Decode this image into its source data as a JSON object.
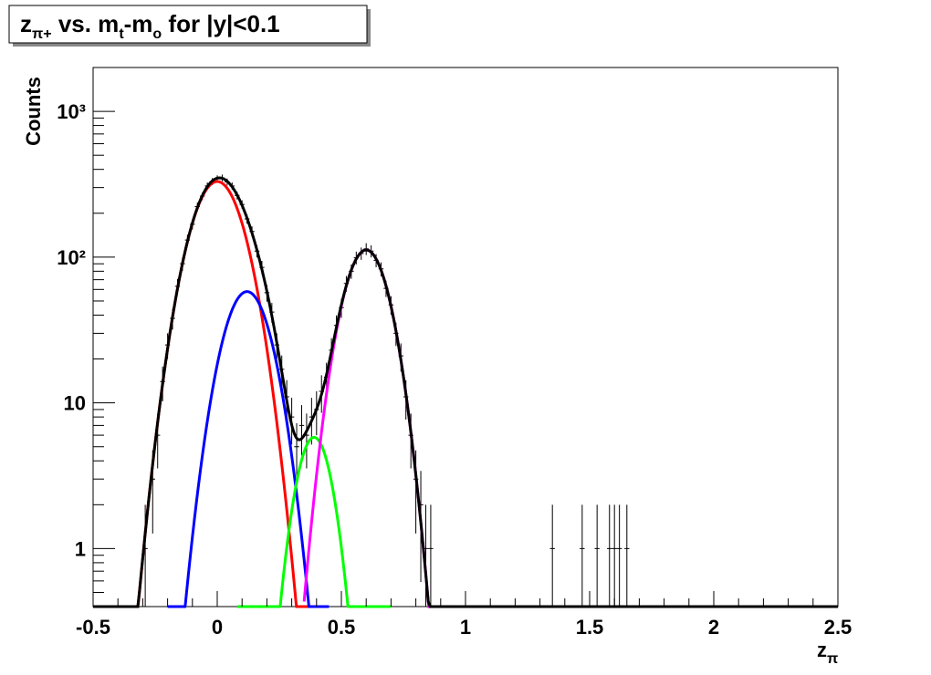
{
  "chart_data": {
    "type": "errorbar",
    "title": [
      {
        "text": "z"
      },
      {
        "text": "π+",
        "sub": true
      },
      {
        "text": " vs. m"
      },
      {
        "text": "t",
        "sub": true
      },
      {
        "text": "-m"
      },
      {
        "text": "o",
        "sub": true
      },
      {
        "text": " for |y|<0.1"
      }
    ],
    "xlabel": [
      {
        "text": "z"
      },
      {
        "text": "π",
        "sub": true
      }
    ],
    "ylabel": "Counts",
    "xlim": [
      -0.5,
      2.5
    ],
    "xticks": [
      -0.5,
      0,
      0.5,
      1,
      1.5,
      2,
      2.5
    ],
    "ylim": [
      0.4,
      2000
    ],
    "log_y": true,
    "yticks": [
      1,
      10,
      {
        "value": 100,
        "label": "10²"
      },
      {
        "value": 1000,
        "label": "10³"
      }
    ],
    "color": "#000000",
    "x": [
      -0.29,
      -0.26,
      -0.24,
      -0.22,
      -0.2,
      -0.18,
      -0.16,
      -0.14,
      -0.12,
      -0.1,
      -0.08,
      -0.06,
      -0.04,
      -0.02,
      0,
      0.02,
      0.04,
      0.06,
      0.08,
      0.1,
      0.12,
      0.14,
      0.16,
      0.18,
      0.2,
      0.22,
      0.24,
      0.26,
      0.28,
      0.3,
      0.32,
      0.34,
      0.36,
      0.38,
      0.4,
      0.42,
      0.44,
      0.46,
      0.48,
      0.5,
      0.52,
      0.54,
      0.56,
      0.58,
      0.6,
      0.62,
      0.64,
      0.66,
      0.68,
      0.7,
      0.72,
      0.74,
      0.76,
      0.78,
      0.8,
      0.82,
      0.84,
      0.86,
      1.35,
      1.47,
      1.53,
      1.58,
      1.6,
      1.62,
      1.65
    ],
    "values": [
      1,
      3,
      6,
      14,
      25,
      38,
      63,
      90,
      131,
      168,
      222,
      262,
      308,
      330,
      345,
      350,
      328,
      308,
      265,
      230,
      183,
      150,
      110,
      85,
      57,
      42,
      25,
      17,
      11,
      8,
      5,
      7,
      6,
      8,
      9,
      12,
      15,
      23,
      34,
      45,
      66,
      80,
      99,
      106,
      114,
      110,
      95,
      83,
      61,
      47,
      30,
      21,
      11,
      6,
      3,
      2,
      1,
      1,
      1,
      1,
      1,
      1,
      1,
      1,
      1
    ],
    "errors": [
      1,
      1.73,
      2.45,
      3.74,
      5,
      6.16,
      7.94,
      9.49,
      11.45,
      12.96,
      14.9,
      16.19,
      17.55,
      18.17,
      18.57,
      18.71,
      18.11,
      17.55,
      16.28,
      15.17,
      13.53,
      12.25,
      10.49,
      9.22,
      7.55,
      6.48,
      5,
      4.12,
      3.32,
      2.83,
      2.24,
      2.65,
      2.45,
      2.83,
      3,
      3.46,
      3.87,
      4.8,
      5.83,
      6.71,
      8.12,
      8.94,
      9.95,
      10.3,
      10.68,
      10.49,
      9.75,
      9.11,
      7.81,
      6.86,
      5.48,
      4.58,
      3.32,
      2.45,
      1.73,
      1.41,
      1,
      1,
      1,
      1,
      1,
      1,
      1,
      1,
      1
    ],
    "bin_width": 0.02,
    "fits": [
      {
        "color": "#ff0000",
        "amplitude": 330,
        "mean": 0,
        "sigma": 0.087,
        "range": [
          -0.35,
          0.37
        ]
      },
      {
        "color": "#0000ff",
        "amplitude": 58,
        "mean": 0.12,
        "sigma": 0.079,
        "range": [
          -0.2,
          0.45
        ]
      },
      {
        "color": "#00ff00",
        "amplitude": 5.8,
        "mean": 0.39,
        "sigma": 0.059,
        "range": [
          0.08,
          0.7
        ]
      },
      {
        "color": "#ff00ff",
        "amplitude": 112,
        "mean": 0.6,
        "sigma": 0.075,
        "range": [
          0.35,
          0.9
        ]
      }
    ],
    "total": {
      "color": "#000000",
      "range": [
        -0.5,
        2.5
      ]
    }
  }
}
